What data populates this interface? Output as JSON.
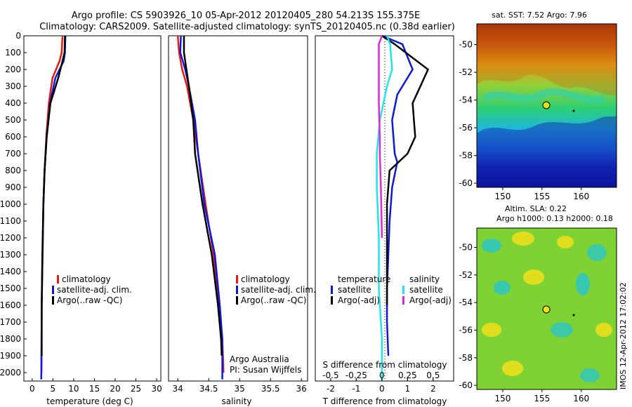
{
  "header": {
    "line1": "Argo profile: CS 5903926_10 05-Apr-2012 20120405_280 54.213S 155.375E",
    "line2": "Climatology: CARS2009. Satellite-adjusted climatology: synTS_20120405.nc (0.38d earlier)"
  },
  "colors": {
    "climatology": "#e8190f",
    "satellite": "#0d18d9",
    "argo": "#000000",
    "t_satellite": "#0d18d9",
    "s_satellite": "#22e6e6",
    "s_argo": "#e028d8"
  },
  "panels": {
    "temperature": {
      "xlabel": "temperature (deg C)",
      "xticks": [
        0,
        5,
        10,
        15,
        20,
        25,
        30
      ],
      "legend": [
        "climatology",
        "satellite-adj. clim.",
        "Argo(..raw -QC)"
      ]
    },
    "salinity": {
      "xlabel": "salinity",
      "xticks": [
        "34",
        "34.5",
        "35",
        "35.5",
        "36"
      ],
      "legend": [
        "climatology",
        "satellite-adj. clim.",
        "Argo(..raw -QC)"
      ],
      "note1": "Argo Australia",
      "note2": "PI: Susan Wijffels"
    },
    "difference": {
      "xlabel": "T difference from climatology",
      "top_xlabel": "S difference from climatology",
      "top_ticks": [
        "-0.5",
        "-0.25",
        "0",
        "0.25",
        "0.5"
      ],
      "xticks": [
        "-2",
        "-1",
        "0",
        "1",
        "2"
      ],
      "legend_t_title": "temperature",
      "legend_s_title": "salinity",
      "legend_t": [
        "satellite",
        "Argo(-adj)"
      ],
      "legend_s": [
        "satellite",
        "Argo(-adj)"
      ]
    },
    "sst_map": {
      "title": "sat. SST: 7.52 Argo: 7.96",
      "yticks": [
        "-50",
        "-52",
        "-54",
        "-56",
        "-58",
        "-60"
      ],
      "xticks": [
        "150",
        "155",
        "160"
      ]
    },
    "sla_map": {
      "title1": "Altim. SLA: 0.22",
      "title2": "Argo h1000: 0.13 h2000: 0.18",
      "yticks": [
        "-50",
        "-52",
        "-54",
        "-56",
        "-58",
        "-60"
      ],
      "xticks": [
        "150",
        "155",
        "160"
      ],
      "side_label": "IMOS 12-Apr-2012 17:02:02"
    }
  },
  "depth_ticks": [
    "0",
    "100",
    "200",
    "300",
    "400",
    "500",
    "600",
    "700",
    "800",
    "900",
    "1000",
    "1100",
    "1200",
    "1300",
    "1400",
    "1500",
    "1600",
    "1700",
    "1800",
    "1900",
    "2000"
  ],
  "chart_data": [
    {
      "type": "line",
      "xlabel": "temperature (deg C)",
      "ylabel": "",
      "xlim": [
        -2,
        31
      ],
      "ylim": [
        2050,
        0
      ],
      "series": [
        {
          "name": "climatology",
          "x": [
            7.3,
            7.1,
            6.6,
            4.9,
            4.0,
            3.4,
            3.0,
            2.7,
            2.5,
            2.3,
            2.25
          ],
          "y": [
            0,
            100,
            150,
            250,
            400,
            600,
            800,
            1000,
            1300,
            1600,
            2000
          ]
        },
        {
          "name": "satellite-adj. clim.",
          "x": [
            8.0,
            7.9,
            7.6,
            5.6,
            4.3,
            3.5,
            3.0,
            2.7,
            2.5,
            2.3,
            2.2
          ],
          "y": [
            0,
            100,
            150,
            250,
            400,
            600,
            800,
            1000,
            1300,
            1600,
            2040
          ]
        },
        {
          "name": "Argo(..raw -QC)",
          "x": [
            7.9,
            7.8,
            7.3,
            6.3,
            4.4,
            3.5,
            3.0,
            2.7,
            2.45,
            2.3,
            2.3
          ],
          "y": [
            0,
            100,
            150,
            250,
            400,
            600,
            800,
            1000,
            1300,
            1600,
            1900
          ]
        }
      ]
    },
    {
      "type": "line",
      "xlabel": "salinity",
      "ylabel": "",
      "xlim": [
        33.85,
        36.1
      ],
      "ylim": [
        2050,
        0
      ],
      "series": [
        {
          "name": "climatology",
          "x": [
            34.0,
            34.02,
            34.07,
            34.15,
            34.25,
            34.33,
            34.45,
            34.58,
            34.67,
            34.72,
            34.74
          ],
          "y": [
            0,
            100,
            200,
            300,
            500,
            700,
            1000,
            1300,
            1600,
            1800,
            2000
          ]
        },
        {
          "name": "satellite-adj. clim.",
          "x": [
            34.05,
            34.04,
            34.12,
            34.18,
            34.28,
            34.33,
            34.43,
            34.6,
            34.68,
            34.72,
            34.72
          ],
          "y": [
            0,
            100,
            200,
            300,
            500,
            700,
            1000,
            1300,
            1600,
            1800,
            2040
          ]
        },
        {
          "name": "Argo(..raw -QC)",
          "x": [
            34.1,
            34.1,
            34.14,
            34.18,
            34.25,
            34.28,
            34.4,
            34.55,
            34.65,
            34.7,
            34.71
          ],
          "y": [
            0,
            100,
            200,
            300,
            500,
            700,
            1000,
            1300,
            1600,
            1800,
            1900
          ]
        }
      ]
    },
    {
      "type": "line",
      "xlabel": "T difference from climatology",
      "ylabel": "",
      "xlim": [
        -2.6,
        2.8
      ],
      "ylim": [
        2050,
        0
      ],
      "series": [
        {
          "name": "satellite",
          "x": [
            0.0,
            0.8,
            1.2,
            0.6,
            0.4,
            0.5,
            0.6,
            0.4,
            0.3,
            0.25,
            0.2,
            0.2,
            0.25
          ],
          "y": [
            0,
            50,
            200,
            350,
            500,
            700,
            750,
            900,
            1100,
            1300,
            1500,
            1700,
            1900
          ]
        },
        {
          "name": "Argo(-adj)",
          "x": [
            0.0,
            0.5,
            1.8,
            1.5,
            1.2,
            1.3,
            1.0,
            0.3,
            0.2,
            0.2,
            0.2
          ],
          "y": [
            0,
            50,
            200,
            300,
            400,
            600,
            700,
            800,
            1000,
            1300,
            1600
          ]
        }
      ]
    },
    {
      "type": "line",
      "xlabel": "S difference from climatology",
      "ylabel": "",
      "xlim": [
        -0.65,
        0.7
      ],
      "ylim": [
        2050,
        0
      ],
      "series": [
        {
          "name": "satellite",
          "x": [
            0.05,
            0.08,
            0.1,
            0.05,
            -0.02,
            -0.05,
            -0.05,
            -0.03,
            -0.03,
            0.0,
            0.0
          ],
          "y": [
            0,
            50,
            200,
            300,
            500,
            700,
            900,
            1200,
            1500,
            1800,
            2050
          ]
        },
        {
          "name": "Argo(-adj)",
          "x": [
            0.0,
            -0.03,
            -0.03,
            -0.03,
            -0.02,
            -0.02,
            -0.01,
            0.0
          ],
          "y": [
            0,
            50,
            200,
            400,
            600,
            700,
            900,
            1200
          ]
        }
      ]
    }
  ]
}
